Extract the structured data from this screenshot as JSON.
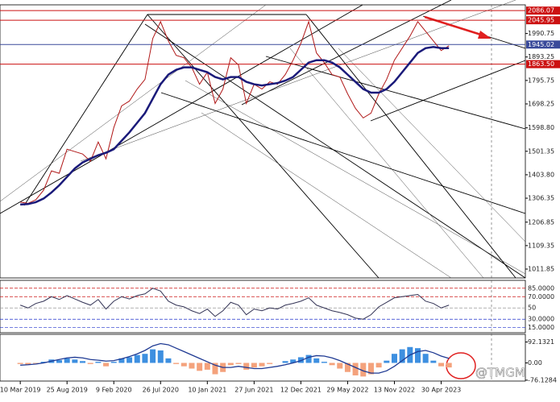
{
  "chart_data": [
    {
      "type": "line",
      "xlim": [
        -2.6,
        64.8
      ],
      "xticks": [
        {
          "value": 0,
          "label": "10 Mar 2019"
        },
        {
          "value": 6,
          "label": "25 Aug 2019"
        },
        {
          "value": 12,
          "label": "9 Feb 2020"
        },
        {
          "value": 18,
          "label": "26 Jul 2020"
        },
        {
          "value": 24,
          "label": "10 Jan 2021"
        },
        {
          "value": 30,
          "label": "27 Jun 2021"
        },
        {
          "value": 36,
          "label": "12 Dec 2021"
        },
        {
          "value": 42,
          "label": "29 May 2022"
        },
        {
          "value": 48,
          "label": "13 Nov 2022"
        },
        {
          "value": 54,
          "label": "30 Apr 2023"
        }
      ],
      "ylim": [
        975,
        2110
      ],
      "yticks": [
        1990.75,
        1893.25,
        1795.75,
        1698.25,
        {
          "value": 1598.8,
          "label": "1598.80"
        },
        1501.35,
        {
          "value": 1403.8,
          "label": "1403.80"
        },
        1306.35,
        1206.85,
        1109.35,
        1011.85
      ],
      "levels": [
        {
          "value": 2086.07,
          "color": "#cc1111"
        },
        {
          "value": 2045.95,
          "color": "#cc1111"
        },
        {
          "value": 1945.02,
          "color": "#3a4a9a"
        },
        {
          "value": 1863.5,
          "label": "1863.50",
          "color": "#cc1111"
        }
      ],
      "series": [
        {
          "color": "#b01818",
          "values": [
            1290,
            1285,
            1300,
            1340,
            1420,
            1410,
            1510,
            1500,
            1490,
            1460,
            1540,
            1470,
            1600,
            1690,
            1710,
            1760,
            1800,
            1970,
            2040,
            1960,
            1900,
            1890,
            1850,
            1780,
            1830,
            1700,
            1760,
            1890,
            1860,
            1700,
            1780,
            1760,
            1790,
            1780,
            1820,
            1880,
            1950,
            2040,
            1910,
            1870,
            1820,
            1810,
            1740,
            1680,
            1640,
            1660,
            1740,
            1800,
            1880,
            1930,
            1980,
            2040,
            2000,
            1960,
            1920,
            1940
          ]
        },
        {
          "color": "#1a1a7a",
          "values": [
            1280,
            1282,
            1290,
            1305,
            1330,
            1360,
            1395,
            1430,
            1455,
            1470,
            1485,
            1495,
            1510,
            1545,
            1580,
            1620,
            1660,
            1720,
            1780,
            1820,
            1840,
            1850,
            1850,
            1840,
            1830,
            1810,
            1800,
            1810,
            1810,
            1790,
            1780,
            1775,
            1780,
            1785,
            1795,
            1810,
            1840,
            1870,
            1880,
            1880,
            1870,
            1850,
            1820,
            1790,
            1760,
            1745,
            1745,
            1760,
            1790,
            1830,
            1870,
            1910,
            1930,
            1935,
            1930,
            1930
          ]
        }
      ]
    },
    {
      "type": "line",
      "ylim": [
        6,
        99
      ],
      "yticks": [
        {
          "value": 85,
          "label": "85.0000"
        },
        {
          "value": 70,
          "label": "70.0000"
        },
        50,
        {
          "value": 30,
          "label": "30.0000"
        },
        {
          "value": 15,
          "label": "15.0000"
        }
      ],
      "ytick_colors": [
        "#cc1111",
        "#cc1111",
        "#999999",
        "#2233cc",
        "#2233cc"
      ],
      "series": [
        {
          "color": "#333355",
          "values": [
            55,
            50,
            58,
            62,
            70,
            65,
            72,
            66,
            60,
            55,
            65,
            48,
            62,
            70,
            66,
            72,
            75,
            85,
            80,
            62,
            55,
            52,
            45,
            40,
            48,
            35,
            45,
            60,
            55,
            38,
            48,
            45,
            50,
            48,
            55,
            58,
            62,
            68,
            55,
            50,
            45,
            42,
            38,
            32,
            30,
            38,
            52,
            60,
            68,
            70,
            72,
            74,
            62,
            58,
            50,
            55
          ]
        }
      ]
    },
    {
      "type": "bar",
      "ylim": [
        -80,
        126
      ],
      "yticks": [
        92.1321,
        {
          "value": 0,
          "label": "0.00"
        },
        -76.1284
      ],
      "up_color": "#3d8fe0",
      "down_color": "#f4a27c",
      "values": [
        -5,
        -8,
        -3,
        5,
        15,
        12,
        20,
        15,
        8,
        -5,
        5,
        -15,
        5,
        20,
        25,
        35,
        40,
        60,
        55,
        20,
        -5,
        -15,
        -25,
        -35,
        -30,
        -50,
        -40,
        -10,
        -5,
        -30,
        -20,
        -15,
        -5,
        0,
        8,
        15,
        25,
        35,
        20,
        5,
        -10,
        -25,
        -40,
        -55,
        -60,
        -50,
        -20,
        10,
        40,
        60,
        70,
        65,
        40,
        10,
        -15,
        -20
      ],
      "series": [
        {
          "color": "#1f3a93",
          "values": [
            -10,
            -8,
            -5,
            0,
            8,
            15,
            22,
            25,
            22,
            15,
            12,
            8,
            10,
            18,
            28,
            40,
            55,
            75,
            85,
            80,
            65,
            50,
            35,
            20,
            5,
            -10,
            -20,
            -20,
            -15,
            -20,
            -25,
            -25,
            -20,
            -15,
            -8,
            0,
            10,
            25,
            32,
            30,
            22,
            10,
            -5,
            -20,
            -35,
            -45,
            -45,
            -35,
            -15,
            10,
            35,
            50,
            55,
            45,
            30,
            20
          ]
        }
      ]
    }
  ],
  "watermark": "@TMGM"
}
